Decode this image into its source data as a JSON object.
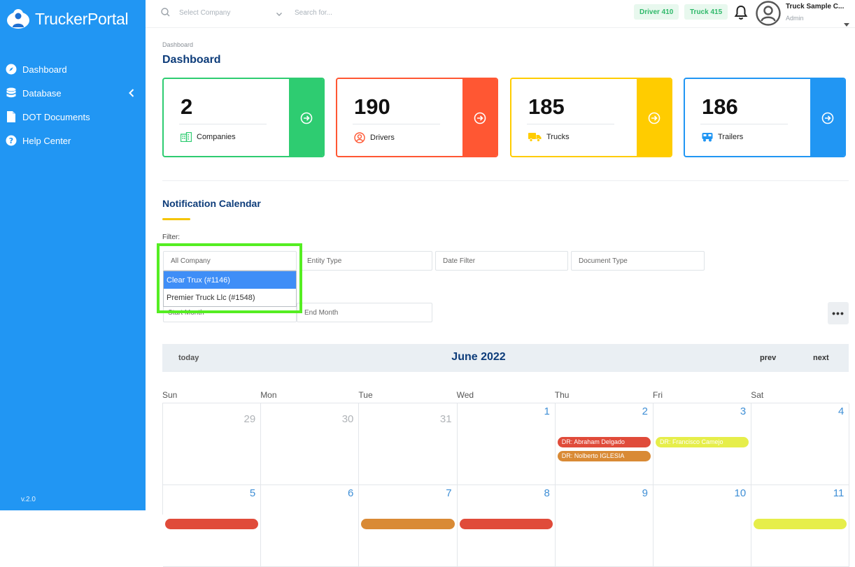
{
  "app": {
    "name": "TruckerPortal",
    "version": "v.2.0"
  },
  "sidebar": {
    "items": [
      {
        "label": "Dashboard",
        "icon": "compass-icon"
      },
      {
        "label": "Database",
        "icon": "database-icon"
      },
      {
        "label": "DOT Documents",
        "icon": "document-icon"
      },
      {
        "label": "Help Center",
        "icon": "help-icon"
      }
    ]
  },
  "topbar": {
    "company_placeholder": "Select Company",
    "search_placeholder": "Search for...",
    "badges": [
      {
        "label": "Driver 410",
        "color": "#2fb96a"
      },
      {
        "label": "Truck 415",
        "color": "#2fb96a"
      }
    ],
    "user": {
      "name": "Truck Sample C...",
      "role": "Admin"
    }
  },
  "breadcrumb": "Dashboard",
  "page_title": "Dashboard",
  "stats": [
    {
      "value": "2",
      "label": "Companies",
      "color": "#2ecc71"
    },
    {
      "value": "190",
      "label": "Drivers",
      "color": "#ff5733"
    },
    {
      "value": "185",
      "label": "Trucks",
      "color": "#ffcc00"
    },
    {
      "value": "186",
      "label": "Trailers",
      "color": "#2196f3"
    }
  ],
  "calendar_section": {
    "title": "Notification Calendar",
    "filter_label": "Filter:",
    "filters": {
      "company": "All Company",
      "entity_type": "Entity Type",
      "date_filter": "Date Filter",
      "document_type": "Document Type",
      "start_month": "Start Month",
      "end_month": "End Month"
    },
    "company_dropdown": [
      {
        "label": "Clear Trux (#1146)",
        "selected": true
      },
      {
        "label": "Premier Truck Llc (#1548)",
        "selected": false
      }
    ],
    "more_label": "•••"
  },
  "calendar": {
    "today_label": "today",
    "title": "June 2022",
    "prev_label": "prev",
    "next_label": "next",
    "days_of_week": [
      "Sun",
      "Mon",
      "Tue",
      "Wed",
      "Thu",
      "Fri",
      "Sat"
    ],
    "weeks": [
      [
        {
          "day": "29",
          "other": true,
          "events": []
        },
        {
          "day": "30",
          "other": true,
          "events": []
        },
        {
          "day": "31",
          "other": true,
          "events": []
        },
        {
          "day": "1",
          "other": false,
          "events": []
        },
        {
          "day": "2",
          "other": false,
          "events": [
            {
              "label": "DR: Abraham Delgado",
              "color": "#e04b3a"
            },
            {
              "label": "DR: Nolberto IGLESIA",
              "color": "#d98a35"
            }
          ]
        },
        {
          "day": "3",
          "other": false,
          "events": [
            {
              "label": "DR: Francisco Camejo",
              "color": "#e6ee4a"
            }
          ]
        },
        {
          "day": "4",
          "other": false,
          "events": []
        }
      ],
      [
        {
          "day": "5",
          "other": false,
          "events": [
            {
              "label": "",
              "color": "#e04b3a"
            }
          ]
        },
        {
          "day": "6",
          "other": false,
          "events": []
        },
        {
          "day": "7",
          "other": false,
          "events": [
            {
              "label": "",
              "color": "#d98a35"
            }
          ]
        },
        {
          "day": "8",
          "other": false,
          "events": [
            {
              "label": "",
              "color": "#e04b3a"
            }
          ]
        },
        {
          "day": "9",
          "other": false,
          "events": []
        },
        {
          "day": "10",
          "other": false,
          "events": []
        },
        {
          "day": "11",
          "other": false,
          "events": [
            {
              "label": "",
              "color": "#e6ee4a"
            }
          ]
        }
      ]
    ]
  }
}
